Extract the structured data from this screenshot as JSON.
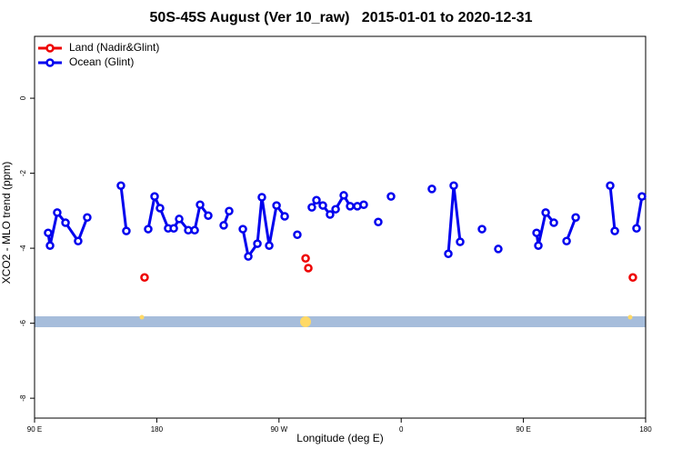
{
  "chart_data": {
    "type": "line",
    "title": "50S-45S August (Ver 10_raw)   2015-01-01 to 2020-12-31",
    "xlabel": "Longitude (deg E)",
    "ylabel": "XCO2 - MLO trend (ppm)",
    "xlim": [
      90,
      540
    ],
    "ylim": [
      -8.53,
      1.65
    ],
    "xticks": [
      {
        "value": 90,
        "label": "90 E"
      },
      {
        "value": 180,
        "label": "180"
      },
      {
        "value": 270,
        "label": "90 W"
      },
      {
        "value": 360,
        "label": "0"
      },
      {
        "value": 450,
        "label": "90 E"
      },
      {
        "value": 540,
        "label": "180"
      }
    ],
    "yticks": [
      -8,
      -6,
      -4,
      -2,
      0
    ],
    "legend": "top-left",
    "series": [
      {
        "name": "Land (Nadir&Glint)",
        "color": "#ee0000",
        "x": [
          171.0,
          null,
          289.6,
          null,
          291.6,
          null,
          530.6
        ],
        "values": [
          -4.78,
          null,
          -4.27,
          null,
          -4.53,
          null,
          -4.78
        ]
      },
      {
        "name": "Ocean (Glint)",
        "color": "#0000ee",
        "x": [
          100.0,
          101.4,
          106.7,
          112.8,
          122.1,
          128.8,
          null,
          153.6,
          157.6,
          null,
          173.7,
          178.4,
          182.4,
          188.4,
          192.5,
          196.5,
          203.2,
          207.9,
          211.9,
          217.9,
          null,
          229.3,
          233.3,
          null,
          243.4,
          247.4,
          254.1,
          257.4,
          262.8,
          268.2,
          274.2,
          null,
          283.5,
          null,
          294.2,
          297.6,
          302.3,
          307.6,
          311.7,
          317.7,
          322.4,
          327.7,
          332.4,
          null,
          343.1,
          null,
          352.5,
          null,
          382.6,
          null,
          394.7,
          398.7,
          403.4,
          null,
          419.5,
          null,
          431.5,
          null,
          459.7,
          461.0,
          466.4,
          472.4,
          null,
          481.8,
          488.5,
          null,
          513.9,
          517.3,
          null,
          533.3,
          537.3
        ],
        "values": [
          -3.59,
          -3.93,
          -3.05,
          -3.32,
          -3.81,
          -3.18,
          null,
          -2.33,
          -3.54,
          null,
          -3.49,
          -2.62,
          -2.93,
          -3.47,
          -3.47,
          -3.22,
          -3.52,
          -3.52,
          -2.84,
          -3.13,
          null,
          -3.39,
          -3.01,
          null,
          -3.49,
          -4.22,
          -3.88,
          -2.64,
          -3.93,
          -2.86,
          -3.15,
          null,
          -3.64,
          null,
          -2.91,
          -2.72,
          -2.86,
          -3.1,
          -2.96,
          -2.59,
          -2.88,
          -2.88,
          -2.84,
          null,
          -3.3,
          null,
          -2.62,
          null,
          -2.42,
          null,
          -4.15,
          -2.33,
          -3.83,
          null,
          -3.49,
          null,
          -4.02,
          null,
          -3.59,
          -3.93,
          -3.05,
          -3.32,
          null,
          -3.81,
          -3.18,
          null,
          -2.33,
          -3.54,
          null,
          -3.47,
          -2.62
        ]
      }
    ]
  }
}
